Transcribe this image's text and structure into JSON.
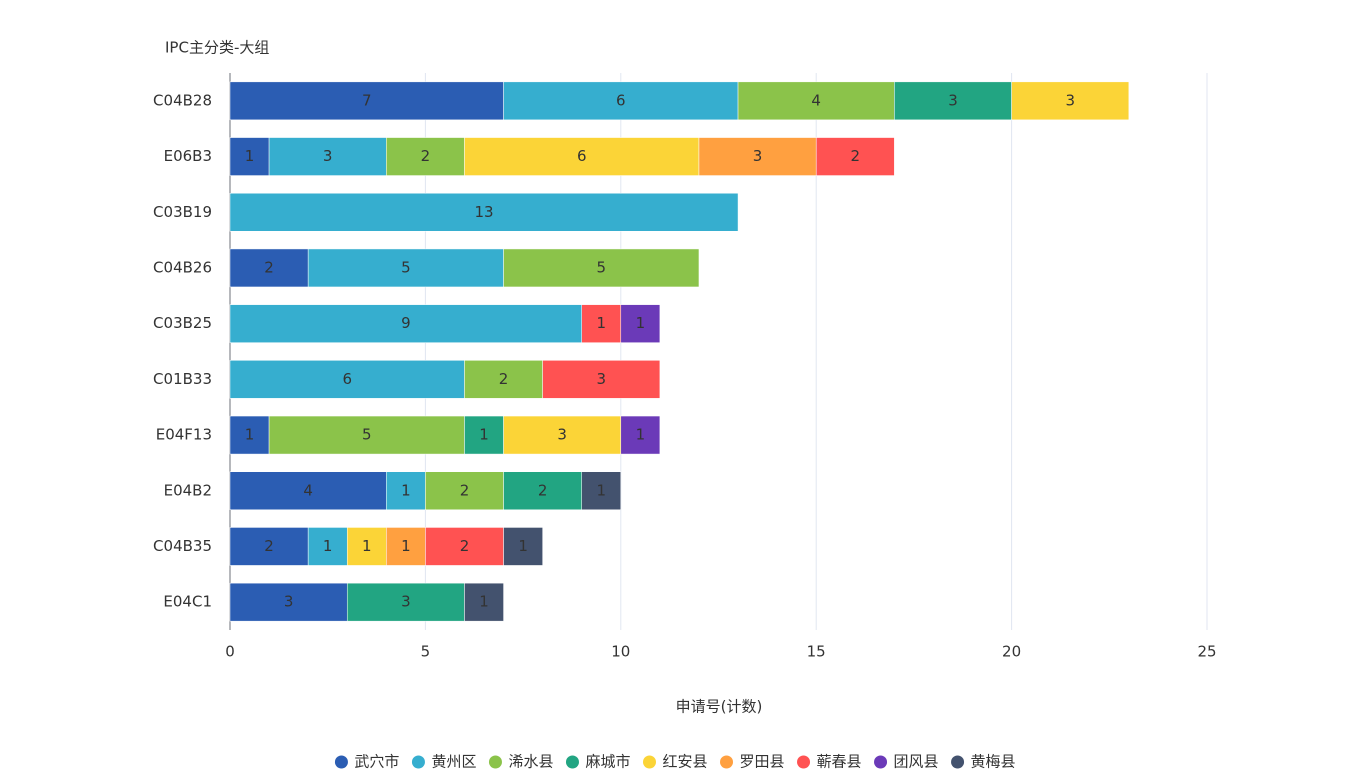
{
  "chart_data": {
    "type": "stacked-bar-horizontal",
    "y_axis_title": "IPC主分类-大组",
    "x_axis_title": "申请号(计数)",
    "categories": [
      "C04B28",
      "E06B3",
      "C03B19",
      "C04B26",
      "C03B25",
      "C01B33",
      "E04F13",
      "E04B2",
      "C04B35",
      "E04C1"
    ],
    "series": [
      {
        "name": "武穴市",
        "color": "#2b5db3",
        "values": [
          7,
          1,
          null,
          2,
          null,
          null,
          1,
          4,
          2,
          3
        ]
      },
      {
        "name": "黄州区",
        "color": "#36aecf",
        "values": [
          6,
          3,
          13,
          5,
          9,
          6,
          null,
          1,
          1,
          null
        ]
      },
      {
        "name": "浠水县",
        "color": "#8bc34a",
        "values": [
          4,
          2,
          null,
          5,
          null,
          2,
          5,
          2,
          null,
          null
        ]
      },
      {
        "name": "麻城市",
        "color": "#22a582",
        "values": [
          3,
          null,
          null,
          null,
          null,
          null,
          1,
          2,
          null,
          3
        ]
      },
      {
        "name": "红安县",
        "color": "#fbd437",
        "values": [
          3,
          6,
          null,
          null,
          null,
          null,
          3,
          null,
          1,
          null
        ]
      },
      {
        "name": "罗田县",
        "color": "#ffa040",
        "values": [
          null,
          3,
          null,
          null,
          null,
          null,
          null,
          null,
          1,
          null
        ]
      },
      {
        "name": "蕲春县",
        "color": "#ff5252",
        "values": [
          null,
          2,
          null,
          null,
          1,
          3,
          null,
          null,
          2,
          null
        ]
      },
      {
        "name": "团风县",
        "color": "#6b3ab8",
        "values": [
          null,
          null,
          null,
          null,
          1,
          null,
          1,
          null,
          null,
          null
        ]
      },
      {
        "name": "黄梅县",
        "color": "#43526e",
        "values": [
          null,
          null,
          null,
          null,
          null,
          null,
          null,
          1,
          1,
          1
        ]
      }
    ],
    "xlim": [
      0,
      25
    ],
    "xticks": [
      0,
      5,
      10,
      15,
      20,
      25
    ],
    "grid": true,
    "legend": "bottom"
  }
}
